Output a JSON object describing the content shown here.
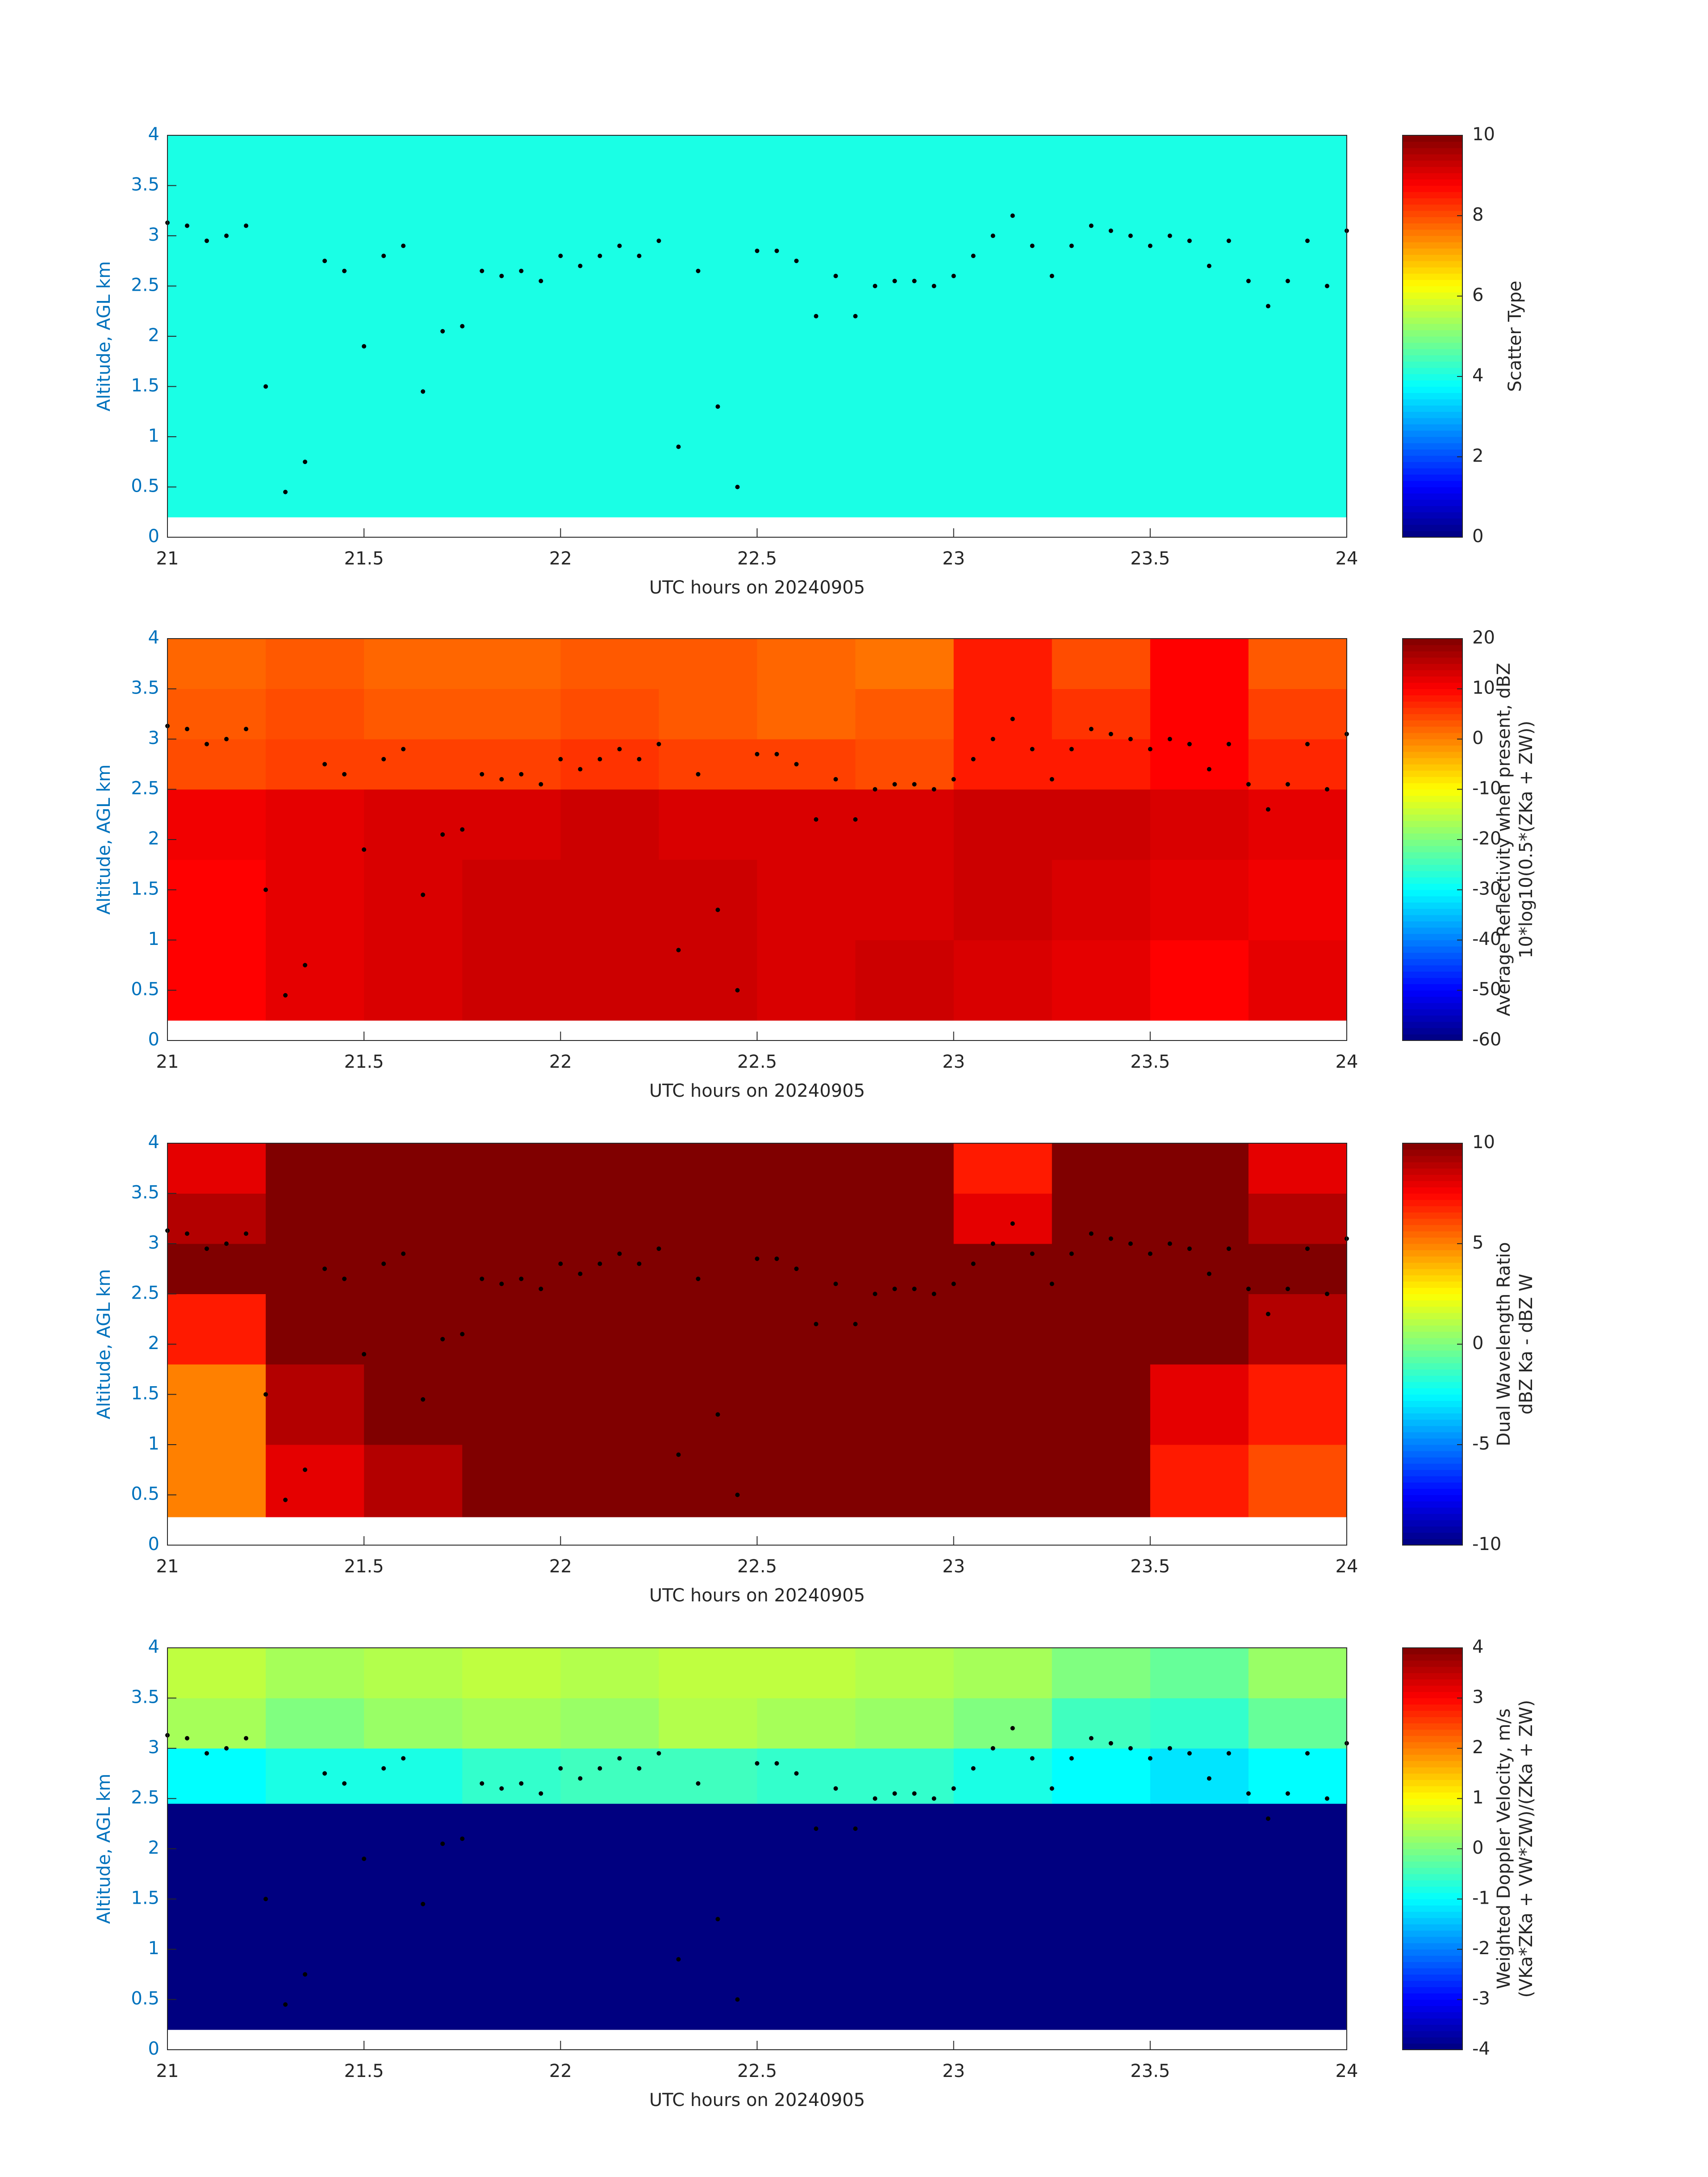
{
  "chart_data": [
    {
      "type": "heatmap",
      "colormap": "jet",
      "xlabel": "UTC hours on 20240905",
      "ylabel": "Altitude, AGL km",
      "xlim": [
        21,
        24
      ],
      "ylim": [
        0,
        4
      ],
      "xticks": [
        21,
        21.5,
        22,
        22.5,
        23,
        23.5,
        24
      ],
      "yticks": [
        0,
        0.5,
        1,
        1.5,
        2,
        2.5,
        3,
        3.5,
        4
      ],
      "x_edges": [
        21,
        21.25,
        21.5,
        21.75,
        22,
        22.25,
        22.5,
        22.75,
        23,
        23.25,
        23.5,
        23.75,
        24
      ],
      "y_edges": [
        0.2,
        1,
        1.8,
        2.5,
        3,
        3.5,
        4
      ],
      "z": [
        [
          4,
          4,
          4,
          4,
          4,
          4,
          4,
          4,
          4,
          4,
          4,
          4
        ],
        [
          4,
          4,
          4,
          4,
          4,
          4,
          4,
          4,
          4,
          4,
          4,
          4
        ],
        [
          4,
          4,
          4,
          4,
          4,
          4,
          4,
          4,
          4,
          4,
          4,
          4
        ],
        [
          4,
          4,
          4,
          4,
          4,
          4,
          4,
          4,
          4,
          4,
          4,
          4
        ],
        [
          4,
          4,
          4,
          4,
          4,
          4,
          4,
          4,
          4,
          4,
          4,
          4
        ],
        [
          4,
          4,
          4,
          4,
          4,
          4,
          4,
          4,
          4,
          4,
          4,
          4
        ]
      ],
      "clim": [
        0,
        10
      ],
      "cticks": [
        0,
        2,
        4,
        6,
        8,
        10
      ],
      "colorbar_label": [
        "Scatter Type"
      ],
      "points": {
        "color": "#000000",
        "x": [
          21,
          21.05,
          21.1,
          21.15,
          21.2,
          21.25,
          21.3,
          21.35,
          21.4,
          21.45,
          21.5,
          21.55,
          21.6,
          21.65,
          21.7,
          21.75,
          21.8,
          21.85,
          21.9,
          21.95,
          22,
          22.05,
          22.1,
          22.15,
          22.2,
          22.25,
          22.3,
          22.35,
          22.4,
          22.45,
          22.5,
          22.55,
          22.6,
          22.65,
          22.7,
          22.75,
          22.8,
          22.85,
          22.9,
          22.95,
          23,
          23.05,
          23.1,
          23.15,
          23.2,
          23.25,
          23.3,
          23.35,
          23.4,
          23.45,
          23.5,
          23.55,
          23.6,
          23.65,
          23.7,
          23.75,
          23.8,
          23.85,
          23.9,
          23.95,
          24
        ],
        "y": [
          3.13,
          3.1,
          2.95,
          3,
          3.1,
          1.5,
          0.45,
          0.75,
          2.75,
          2.65,
          1.9,
          2.8,
          2.9,
          1.45,
          2.05,
          2.1,
          2.65,
          2.6,
          2.65,
          2.55,
          2.8,
          2.7,
          2.8,
          2.9,
          2.8,
          2.95,
          0.9,
          2.65,
          1.3,
          0.5,
          2.85,
          2.85,
          2.75,
          2.2,
          2.6,
          2.2,
          2.5,
          2.55,
          2.55,
          2.5,
          2.6,
          2.8,
          3,
          3.2,
          2.9,
          2.6,
          2.9,
          3.1,
          3.05,
          3,
          2.9,
          3,
          2.95,
          2.7,
          2.95,
          2.55,
          2.3,
          2.55,
          2.95,
          2.5,
          3.05
        ]
      }
    },
    {
      "type": "heatmap",
      "colormap": "jet",
      "xlabel": "UTC hours on 20240905",
      "ylabel": "Altitude, AGL km",
      "xlim": [
        21,
        24
      ],
      "ylim": [
        0,
        4
      ],
      "xticks": [
        21,
        21.5,
        22,
        22.5,
        23,
        23.5,
        24
      ],
      "yticks": [
        0,
        0.5,
        1,
        1.5,
        2,
        2.5,
        3,
        3.5,
        4
      ],
      "x_edges": [
        21,
        21.25,
        21.5,
        21.75,
        22,
        22.25,
        22.5,
        22.75,
        23,
        23.25,
        23.5,
        23.75,
        24
      ],
      "y_edges": [
        0.2,
        1,
        1.8,
        2.5,
        3,
        3.5,
        4
      ],
      "z": [
        [
          10,
          12,
          13,
          14,
          14,
          14,
          13,
          14,
          13,
          12,
          10,
          12
        ],
        [
          10,
          12,
          13,
          14,
          14,
          14,
          13,
          13,
          14,
          13,
          12,
          11
        ],
        [
          11,
          12,
          13,
          13,
          14,
          13,
          13,
          13,
          14,
          14,
          13,
          12
        ],
        [
          4,
          5,
          5,
          5,
          6,
          5,
          5,
          4,
          8,
          8,
          10,
          7
        ],
        [
          3,
          4,
          3,
          3,
          4,
          3,
          2,
          3,
          8,
          6,
          10,
          5
        ],
        [
          2,
          3,
          2,
          2,
          3,
          3,
          2,
          1,
          8,
          4,
          10,
          3
        ]
      ],
      "clim": [
        -60,
        20
      ],
      "cticks": [
        -60,
        -50,
        -40,
        -30,
        -20,
        -10,
        0,
        10,
        20
      ],
      "colorbar_label": [
        "Average Reflectivity when present, dBZ",
        "10*log10(0.5*(ZKa + ZW))"
      ],
      "points": {
        "color": "#000000",
        "x": [
          21,
          21.05,
          21.1,
          21.15,
          21.2,
          21.25,
          21.3,
          21.35,
          21.4,
          21.45,
          21.5,
          21.55,
          21.6,
          21.65,
          21.7,
          21.75,
          21.8,
          21.85,
          21.9,
          21.95,
          22,
          22.05,
          22.1,
          22.15,
          22.2,
          22.25,
          22.3,
          22.35,
          22.4,
          22.45,
          22.5,
          22.55,
          22.6,
          22.65,
          22.7,
          22.75,
          22.8,
          22.85,
          22.9,
          22.95,
          23,
          23.05,
          23.1,
          23.15,
          23.2,
          23.25,
          23.3,
          23.35,
          23.4,
          23.45,
          23.5,
          23.55,
          23.6,
          23.65,
          23.7,
          23.75,
          23.8,
          23.85,
          23.9,
          23.95,
          24
        ],
        "y": [
          3.13,
          3.1,
          2.95,
          3,
          3.1,
          1.5,
          0.45,
          0.75,
          2.75,
          2.65,
          1.9,
          2.8,
          2.9,
          1.45,
          2.05,
          2.1,
          2.65,
          2.6,
          2.65,
          2.55,
          2.8,
          2.7,
          2.8,
          2.9,
          2.8,
          2.95,
          0.9,
          2.65,
          1.3,
          0.5,
          2.85,
          2.85,
          2.75,
          2.2,
          2.6,
          2.2,
          2.5,
          2.55,
          2.55,
          2.5,
          2.6,
          2.8,
          3,
          3.2,
          2.9,
          2.6,
          2.9,
          3.1,
          3.05,
          3,
          2.9,
          3,
          2.95,
          2.7,
          2.95,
          2.55,
          2.3,
          2.55,
          2.95,
          2.5,
          3.05
        ]
      }
    },
    {
      "type": "heatmap",
      "colormap": "jet",
      "xlabel": "UTC hours on 20240905",
      "ylabel": "Altitude, AGL km",
      "xlim": [
        21,
        24
      ],
      "ylim": [
        0,
        4
      ],
      "xticks": [
        21,
        21.5,
        22,
        22.5,
        23,
        23.5,
        24
      ],
      "yticks": [
        0,
        0.5,
        1,
        1.5,
        2,
        2.5,
        3,
        3.5,
        4
      ],
      "x_edges": [
        21,
        21.25,
        21.5,
        21.75,
        22,
        22.25,
        22.5,
        22.75,
        23,
        23.25,
        23.5,
        23.75,
        24
      ],
      "y_edges": [
        0.28,
        1,
        1.8,
        2.5,
        3,
        3.5,
        4
      ],
      "z": [
        [
          5,
          8,
          9,
          10,
          10,
          10,
          10,
          10,
          10,
          10,
          7,
          6
        ],
        [
          5,
          9,
          10,
          10,
          10,
          10,
          10,
          10,
          10,
          10,
          8,
          7
        ],
        [
          7,
          10,
          10,
          10,
          10,
          10,
          10,
          10,
          10,
          10,
          10,
          9
        ],
        [
          10,
          10,
          10,
          10,
          10,
          10,
          10,
          10,
          10,
          10,
          10,
          10
        ],
        [
          9,
          10,
          10,
          10,
          10,
          10,
          10,
          10,
          8,
          10,
          10,
          9
        ],
        [
          8,
          10,
          10,
          10,
          10,
          10,
          10,
          10,
          7,
          10,
          10,
          8
        ]
      ],
      "clim": [
        -10,
        10
      ],
      "cticks": [
        -10,
        -5,
        0,
        5,
        10
      ],
      "colorbar_label": [
        "Dual Wavelength Ratio",
        "dBZ Ka - dBZ W"
      ],
      "points": {
        "color": "#000000",
        "x": [
          21,
          21.05,
          21.1,
          21.15,
          21.2,
          21.25,
          21.3,
          21.35,
          21.4,
          21.45,
          21.5,
          21.55,
          21.6,
          21.65,
          21.7,
          21.75,
          21.8,
          21.85,
          21.9,
          21.95,
          22,
          22.05,
          22.1,
          22.15,
          22.2,
          22.25,
          22.3,
          22.35,
          22.4,
          22.45,
          22.5,
          22.55,
          22.6,
          22.65,
          22.7,
          22.75,
          22.8,
          22.85,
          22.9,
          22.95,
          23,
          23.05,
          23.1,
          23.15,
          23.2,
          23.25,
          23.3,
          23.35,
          23.4,
          23.45,
          23.5,
          23.55,
          23.6,
          23.65,
          23.7,
          23.75,
          23.8,
          23.85,
          23.9,
          23.95,
          24
        ],
        "y": [
          3.13,
          3.1,
          2.95,
          3,
          3.1,
          1.5,
          0.45,
          0.75,
          2.75,
          2.65,
          1.9,
          2.8,
          2.9,
          1.45,
          2.05,
          2.1,
          2.65,
          2.6,
          2.65,
          2.55,
          2.8,
          2.7,
          2.8,
          2.9,
          2.8,
          2.95,
          0.9,
          2.65,
          1.3,
          0.5,
          2.85,
          2.85,
          2.75,
          2.2,
          2.6,
          2.2,
          2.5,
          2.55,
          2.55,
          2.5,
          2.6,
          2.8,
          3,
          3.2,
          2.9,
          2.6,
          2.9,
          3.1,
          3.05,
          3,
          2.9,
          3,
          2.95,
          2.7,
          2.95,
          2.55,
          2.3,
          2.55,
          2.95,
          2.5,
          3.05
        ]
      }
    },
    {
      "type": "heatmap",
      "colormap": "jet",
      "xlabel": "UTC hours on 20240905",
      "ylabel": "Altitude, AGL km",
      "xlim": [
        21,
        24
      ],
      "ylim": [
        0,
        4
      ],
      "xticks": [
        21,
        21.5,
        22,
        22.5,
        23,
        23.5,
        24
      ],
      "yticks": [
        0,
        0.5,
        1,
        1.5,
        2,
        2.5,
        3,
        3.5,
        4
      ],
      "x_edges": [
        21,
        21.25,
        21.5,
        21.75,
        22,
        22.25,
        22.5,
        22.75,
        23,
        23.25,
        23.5,
        23.75,
        24
      ],
      "y_edges": [
        0.2,
        1,
        1.8,
        2.45,
        3,
        3.5,
        4
      ],
      "z": [
        [
          -4,
          -4,
          -4,
          -4,
          -4,
          -4,
          -4,
          -4,
          -4,
          -4,
          -4,
          -4
        ],
        [
          -4,
          -4,
          -4,
          -4,
          -4,
          -4,
          -4,
          -4,
          -4,
          -4,
          -4,
          -4
        ],
        [
          -4,
          -4,
          -4,
          -4,
          -4,
          -4,
          -4,
          -4,
          -4,
          -4,
          -4,
          -4
        ],
        [
          -1,
          -0.8,
          -0.8,
          -0.6,
          -0.5,
          -0.5,
          -0.6,
          -0.6,
          -0.8,
          -1,
          -1.2,
          -1
        ],
        [
          0.3,
          0,
          0.2,
          0.3,
          0.2,
          0.4,
          0.3,
          0.2,
          0,
          -0.5,
          -0.6,
          -0.2
        ],
        [
          0.5,
          0.3,
          0.4,
          0.5,
          0.4,
          0.5,
          0.5,
          0.4,
          0.3,
          0,
          -0.2,
          0.2
        ]
      ],
      "clim": [
        -4,
        4
      ],
      "cticks": [
        -4,
        -3,
        -2,
        -1,
        0,
        1,
        2,
        3,
        4
      ],
      "colorbar_label": [
        "Weighted Doppler Velocity, m/s",
        "(VKa*ZKa + VW*ZW)/(ZKa + ZW)"
      ],
      "points": {
        "color": "#000000",
        "x": [
          21,
          21.05,
          21.1,
          21.15,
          21.2,
          21.25,
          21.3,
          21.35,
          21.4,
          21.45,
          21.5,
          21.55,
          21.6,
          21.65,
          21.7,
          21.75,
          21.8,
          21.85,
          21.9,
          21.95,
          22,
          22.05,
          22.1,
          22.15,
          22.2,
          22.25,
          22.3,
          22.35,
          22.4,
          22.45,
          22.5,
          22.55,
          22.6,
          22.65,
          22.7,
          22.75,
          22.8,
          22.85,
          22.9,
          22.95,
          23,
          23.05,
          23.1,
          23.15,
          23.2,
          23.25,
          23.3,
          23.35,
          23.4,
          23.45,
          23.5,
          23.55,
          23.6,
          23.65,
          23.7,
          23.75,
          23.8,
          23.85,
          23.9,
          23.95,
          24
        ],
        "y": [
          3.13,
          3.1,
          2.95,
          3,
          3.1,
          1.5,
          0.45,
          0.75,
          2.75,
          2.65,
          1.9,
          2.8,
          2.9,
          1.45,
          2.05,
          2.1,
          2.65,
          2.6,
          2.65,
          2.55,
          2.8,
          2.7,
          2.8,
          2.9,
          2.8,
          2.95,
          0.9,
          2.65,
          1.3,
          0.5,
          2.85,
          2.85,
          2.75,
          2.2,
          2.6,
          2.2,
          2.5,
          2.55,
          2.55,
          2.5,
          2.6,
          2.8,
          3,
          3.2,
          2.9,
          2.6,
          2.9,
          3.1,
          3.05,
          3,
          2.9,
          3,
          2.95,
          2.7,
          2.95,
          2.55,
          2.3,
          2.55,
          2.95,
          2.5,
          3.05
        ]
      }
    }
  ]
}
